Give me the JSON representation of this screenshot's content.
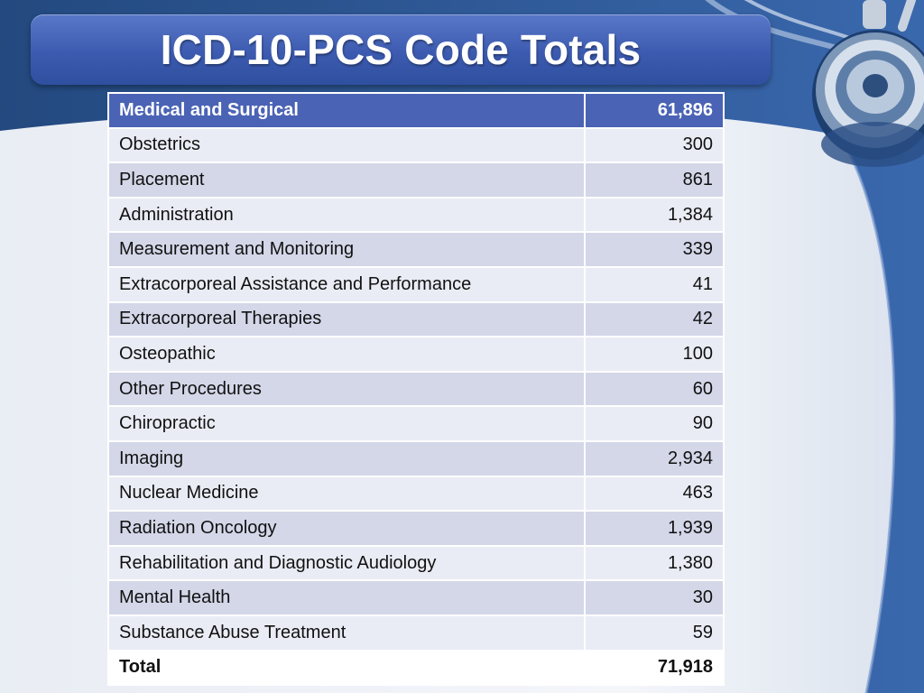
{
  "slide": {
    "title": "ICD-10-PCS Code Totals",
    "colors": {
      "background_dark": "#2f5b9c",
      "background_light": "#eef1f6",
      "header_row": "#4a63b5",
      "row_light": "#eaecf5",
      "row_dark": "#d3d7e8"
    },
    "decorations": [
      "stethoscope-image"
    ]
  },
  "table": {
    "header": {
      "section": "Medical and Surgical",
      "count": "61,896"
    },
    "rows": [
      {
        "section": "Obstetrics",
        "count": "300"
      },
      {
        "section": "Placement",
        "count": "861"
      },
      {
        "section": "Administration",
        "count": "1,384"
      },
      {
        "section": "Measurement and Monitoring",
        "count": "339"
      },
      {
        "section": "Extracorporeal Assistance and Performance",
        "count": "41"
      },
      {
        "section": "Extracorporeal Therapies",
        "count": "42"
      },
      {
        "section": "Osteopathic",
        "count": "100"
      },
      {
        "section": "Other Procedures",
        "count": "60"
      },
      {
        "section": "Chiropractic",
        "count": "90"
      },
      {
        "section": "Imaging",
        "count": "2,934"
      },
      {
        "section": "Nuclear Medicine",
        "count": "463"
      },
      {
        "section": "Radiation Oncology",
        "count": "1,939"
      },
      {
        "section": "Rehabilitation and Diagnostic Audiology",
        "count": "1,380"
      },
      {
        "section": "Mental Health",
        "count": "30"
      },
      {
        "section": "Substance Abuse Treatment",
        "count": "59"
      }
    ],
    "total": {
      "section": "Total",
      "count": "71,918"
    }
  }
}
